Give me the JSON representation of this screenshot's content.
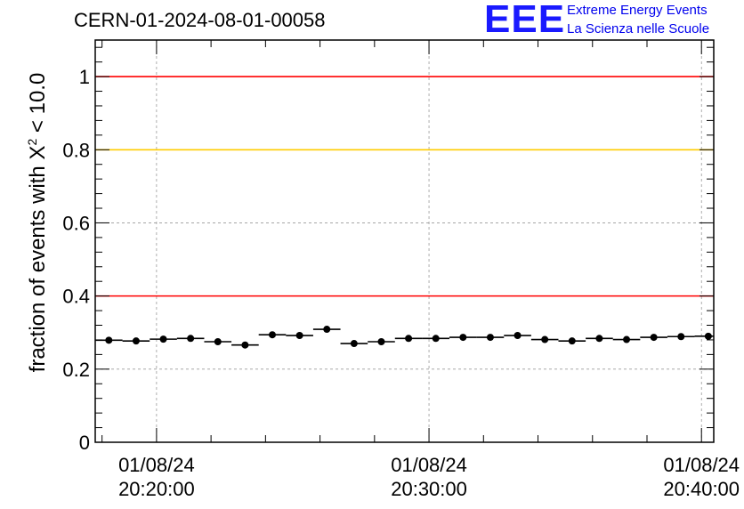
{
  "header": {
    "run_title": "CERN-01-2024-08-01-00058",
    "logo_text": "EEE",
    "logo_line1": "Extreme Energy Events",
    "logo_line2": "La Scienza nelle Scuole"
  },
  "chart_data": {
    "type": "scatter",
    "title": "CERN-01-2024-08-01-00058",
    "ylabel_prefix": "fraction of events with ",
    "ylabel_symbol": "X",
    "ylabel_exponent": "2",
    "ylabel_suffix": " < 10.0",
    "xlabel": "",
    "x_unit": "minutes",
    "xlim": [
      17.75,
      40.45
    ],
    "ylim": [
      0,
      1.1
    ],
    "y_ticks": [
      0,
      0.2,
      0.4,
      0.6,
      0.8,
      1
    ],
    "y_tick_labels": [
      "0",
      "0.2",
      "0.4",
      "0.6",
      "0.8",
      "1"
    ],
    "x_ticks": [
      20,
      30,
      40
    ],
    "x_tick_labels": [
      [
        "01/08/24",
        "20:20:00"
      ],
      [
        "01/08/24",
        "20:30:00"
      ],
      [
        "01/08/24",
        "20:40:00"
      ]
    ],
    "grid": true,
    "series": [
      {
        "x": [
          18.25,
          19.25,
          20.25,
          21.25,
          22.25,
          23.25,
          24.25,
          25.25,
          26.25,
          27.25,
          28.25,
          29.25,
          30.25,
          31.25,
          32.25,
          33.25,
          34.25,
          35.25,
          36.25,
          37.25,
          38.25,
          39.25,
          40.25
        ],
        "values": [
          0.279,
          0.277,
          0.282,
          0.284,
          0.275,
          0.266,
          0.294,
          0.292,
          0.309,
          0.27,
          0.275,
          0.284,
          0.284,
          0.287,
          0.287,
          0.292,
          0.281,
          0.277,
          0.284,
          0.281,
          0.287,
          0.289,
          0.29
        ],
        "bin_width": 1.0,
        "color": "#000000"
      }
    ],
    "reference_lines": [
      {
        "y": 1.0,
        "color": "#ff0000"
      },
      {
        "y": 0.8,
        "color": "#ffcc00"
      },
      {
        "y": 0.4,
        "color": "#ff0000"
      }
    ]
  }
}
